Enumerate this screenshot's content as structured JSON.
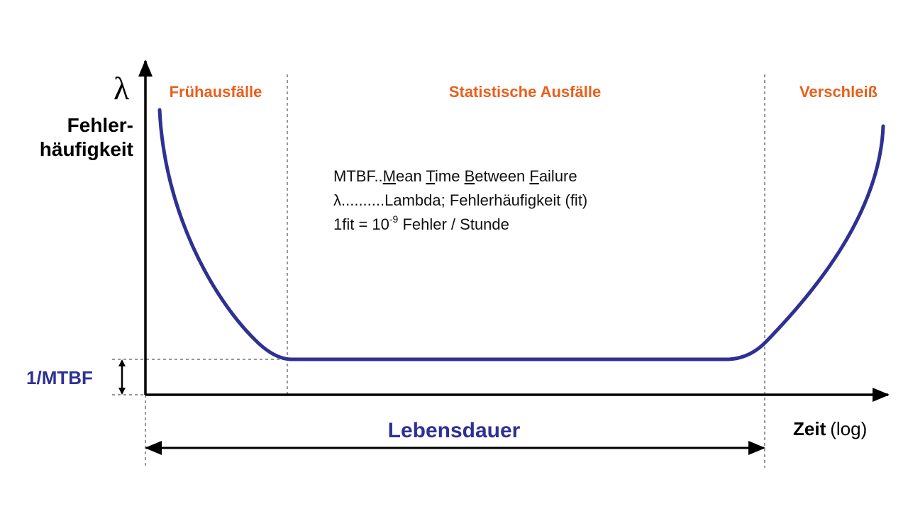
{
  "y_axis": {
    "symbol": "λ",
    "label_lines": [
      "Fehler-",
      "häufigkeit"
    ]
  },
  "phases": [
    "Frühausfälle",
    "Statistische Ausfälle",
    "Verschleiß"
  ],
  "notes": {
    "line1": [
      "MTBF..",
      "M",
      "ean ",
      "T",
      "ime ",
      "B",
      "etween ",
      "F",
      "ailure"
    ],
    "line2": "λ..........Lambda; Fehlerhäufigkeit (fit)",
    "line3": [
      "1fit = 10",
      "-9",
      " Fehler / Stunde"
    ]
  },
  "mtbf_label": "1/MTBF",
  "lifetime_label": "Lebensdauer",
  "x_axis": {
    "label": "Zeit",
    "scale": "(log)"
  }
}
